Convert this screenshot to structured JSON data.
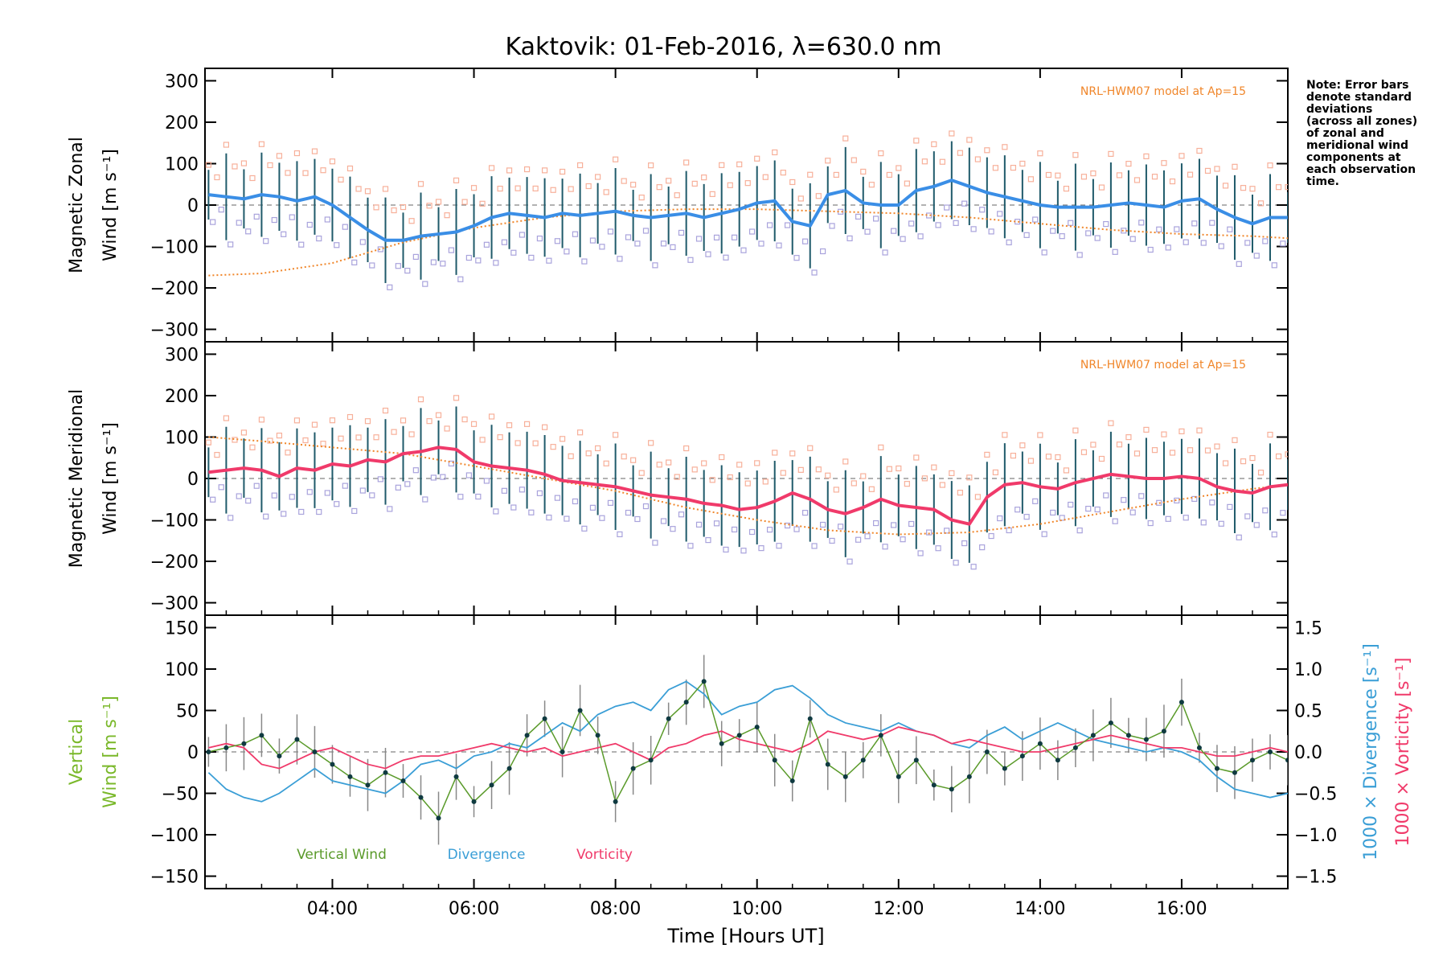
{
  "chart_data": [
    {
      "panel": "zonal",
      "type": "line",
      "title": "Kaktovik: 01-Feb-2016, λ=630.0 nm",
      "ylabel_line1": "Magnetic Zonal",
      "ylabel_line2": "Wind [m s⁻¹]",
      "ylim": [
        -330,
        330
      ],
      "yticks": [
        "300",
        "200",
        "100",
        "0",
        "−100",
        "−200",
        "−300"
      ],
      "ytick_values": [
        300,
        200,
        100,
        0,
        -100,
        -200,
        -300
      ],
      "model_label": "NRL-HWM07 model at Ap=15",
      "note": [
        "Note: Error bars",
        "denote standard",
        "deviations",
        "(across all zones)",
        "of zonal and",
        "meridional wind",
        "components at",
        "each observation",
        "time."
      ],
      "series": [
        {
          "name": "mean zonal wind",
          "color": "#3a8ee6",
          "x": [
            2.25,
            2.5,
            2.75,
            3.0,
            3.25,
            3.5,
            3.75,
            4.0,
            4.25,
            4.5,
            4.75,
            5.0,
            5.25,
            5.5,
            5.75,
            6.0,
            6.25,
            6.5,
            6.75,
            7.0,
            7.25,
            7.5,
            7.75,
            8.0,
            8.25,
            8.5,
            8.75,
            9.0,
            9.25,
            9.5,
            9.75,
            10.0,
            10.25,
            10.5,
            10.75,
            11.0,
            11.25,
            11.5,
            11.75,
            12.0,
            12.25,
            12.5,
            12.75,
            13.0,
            13.25,
            13.5,
            13.75,
            14.0,
            14.25,
            14.5,
            14.75,
            15.0,
            15.25,
            15.5,
            15.75,
            16.0,
            16.25,
            16.5,
            16.75,
            17.0,
            17.25,
            17.5
          ],
          "values": [
            25,
            20,
            15,
            25,
            20,
            10,
            20,
            0,
            -30,
            -60,
            -85,
            -85,
            -75,
            -70,
            -65,
            -50,
            -30,
            -20,
            -25,
            -30,
            -20,
            -25,
            -20,
            -15,
            -25,
            -30,
            -25,
            -20,
            -30,
            -20,
            -10,
            5,
            10,
            -40,
            -50,
            25,
            35,
            5,
            0,
            0,
            35,
            45,
            60,
            45,
            30,
            20,
            10,
            0,
            -5,
            -5,
            -5,
            0,
            5,
            0,
            -5,
            10,
            15,
            -10,
            -30,
            -45,
            -30,
            -30
          ]
        },
        {
          "name": "NRL-HWM07 zonal model",
          "color": "#f0862a",
          "x": [
            2.25,
            3.0,
            4.0,
            5.0,
            6.0,
            7.0,
            8.0,
            9.0,
            10.0,
            11.0,
            12.0,
            13.0,
            14.0,
            15.0,
            16.0,
            17.0,
            17.5
          ],
          "values": [
            -170,
            -165,
            -140,
            -90,
            -55,
            -30,
            -15,
            -10,
            -10,
            -15,
            -20,
            -30,
            -45,
            -60,
            -70,
            -75,
            -80
          ]
        }
      ]
    },
    {
      "panel": "meridional",
      "type": "line",
      "ylabel_line1": "Magnetic Meridional",
      "ylabel_line2": "Wind [m s⁻¹]",
      "ylim": [
        -330,
        330
      ],
      "yticks": [
        "300",
        "200",
        "100",
        "0",
        "−100",
        "−200",
        "−300"
      ],
      "ytick_values": [
        300,
        200,
        100,
        0,
        -100,
        -200,
        -300
      ],
      "model_label": "NRL-HWM07 model at Ap=15",
      "series": [
        {
          "name": "mean meridional wind",
          "color": "#f03a6a",
          "x": [
            2.25,
            2.5,
            2.75,
            3.0,
            3.25,
            3.5,
            3.75,
            4.0,
            4.25,
            4.5,
            4.75,
            5.0,
            5.25,
            5.5,
            5.75,
            6.0,
            6.25,
            6.5,
            6.75,
            7.0,
            7.25,
            7.5,
            7.75,
            8.0,
            8.25,
            8.5,
            8.75,
            9.0,
            9.25,
            9.5,
            9.75,
            10.0,
            10.25,
            10.5,
            10.75,
            11.0,
            11.25,
            11.5,
            11.75,
            12.0,
            12.25,
            12.5,
            12.75,
            13.0,
            13.25,
            13.5,
            13.75,
            14.0,
            14.25,
            14.5,
            14.75,
            15.0,
            15.25,
            15.5,
            15.75,
            16.0,
            16.25,
            16.5,
            16.75,
            17.0,
            17.25,
            17.5
          ],
          "values": [
            15,
            20,
            25,
            20,
            5,
            25,
            20,
            35,
            30,
            45,
            40,
            60,
            65,
            75,
            70,
            40,
            30,
            25,
            20,
            10,
            -5,
            -10,
            -15,
            -20,
            -30,
            -40,
            -45,
            -50,
            -60,
            -65,
            -75,
            -70,
            -55,
            -35,
            -50,
            -75,
            -85,
            -70,
            -50,
            -65,
            -70,
            -75,
            -100,
            -110,
            -45,
            -15,
            -10,
            -20,
            -25,
            -10,
            0,
            10,
            5,
            0,
            0,
            5,
            0,
            -20,
            -30,
            -35,
            -20,
            -15
          ]
        },
        {
          "name": "NRL-HWM07 meridional model",
          "color": "#f0862a",
          "x": [
            2.25,
            3.0,
            4.0,
            5.0,
            6.0,
            7.0,
            8.0,
            9.0,
            10.0,
            11.0,
            12.0,
            13.0,
            14.0,
            15.0,
            16.0,
            17.0,
            17.5
          ],
          "values": [
            100,
            90,
            75,
            60,
            30,
            0,
            -30,
            -70,
            -100,
            -125,
            -135,
            -130,
            -110,
            -80,
            -50,
            -25,
            -15
          ]
        }
      ]
    },
    {
      "panel": "vertical",
      "type": "line",
      "ylabel_line1": "Vertical",
      "ylabel_line2": "Wind [m s⁻¹]",
      "ylim": [
        -165,
        165
      ],
      "yticks": [
        "150",
        "100",
        "50",
        "0",
        "−50",
        "−100",
        "−150"
      ],
      "ytick_values": [
        150,
        100,
        50,
        0,
        -50,
        -100,
        -150
      ],
      "right_ylabel_div": "1000 × Divergence [s⁻¹]",
      "right_ylabel_vort": "1000 × Vorticity [s⁻¹]",
      "right_ylim": [
        -1.65,
        1.65
      ],
      "right_yticks": [
        "1.5",
        "1.0",
        "0.5",
        "0.0",
        "−0.5",
        "−1.0",
        "−1.5"
      ],
      "right_ytick_values": [
        1.5,
        1.0,
        0.5,
        0.0,
        -0.5,
        -1.0,
        -1.5
      ],
      "xlabel": "Time [Hours UT]",
      "xlim": [
        2.2,
        17.5
      ],
      "xticks": [
        "04:00",
        "06:00",
        "08:00",
        "10:00",
        "12:00",
        "14:00",
        "16:00"
      ],
      "xtick_values": [
        4,
        6,
        8,
        10,
        12,
        14,
        16
      ],
      "legend": [
        "Vertical Wind",
        "Divergence",
        "Vorticity"
      ],
      "series": [
        {
          "name": "Vertical Wind",
          "color": "#5a9a2a",
          "x": [
            2.25,
            2.5,
            2.75,
            3.0,
            3.25,
            3.5,
            3.75,
            4.0,
            4.25,
            4.5,
            4.75,
            5.0,
            5.25,
            5.5,
            5.75,
            6.0,
            6.25,
            6.5,
            6.75,
            7.0,
            7.25,
            7.5,
            7.75,
            8.0,
            8.25,
            8.5,
            8.75,
            9.0,
            9.25,
            9.5,
            9.75,
            10.0,
            10.25,
            10.5,
            10.75,
            11.0,
            11.25,
            11.5,
            11.75,
            12.0,
            12.25,
            12.5,
            12.75,
            13.0,
            13.25,
            13.5,
            13.75,
            14.0,
            14.25,
            14.5,
            14.75,
            15.0,
            15.25,
            15.5,
            15.75,
            16.0,
            16.25,
            16.5,
            16.75,
            17.0,
            17.25,
            17.5
          ],
          "values": [
            0,
            5,
            10,
            20,
            -5,
            15,
            0,
            -15,
            -30,
            -40,
            -25,
            -35,
            -55,
            -80,
            -30,
            -60,
            -40,
            -20,
            20,
            40,
            0,
            50,
            20,
            -60,
            -20,
            -10,
            40,
            60,
            85,
            10,
            20,
            30,
            -10,
            -35,
            40,
            -15,
            -30,
            -10,
            20,
            -30,
            -10,
            -40,
            -45,
            -30,
            0,
            -20,
            -5,
            10,
            -10,
            5,
            20,
            35,
            20,
            15,
            25,
            60,
            5,
            -20,
            -25,
            -10,
            0,
            -10
          ]
        },
        {
          "name": "Divergence",
          "color": "#3a9ed6",
          "x": [
            2.25,
            2.5,
            2.75,
            3.0,
            3.25,
            3.5,
            3.75,
            4.0,
            4.25,
            4.5,
            4.75,
            5.0,
            5.25,
            5.5,
            5.75,
            6.0,
            6.25,
            6.5,
            6.75,
            7.0,
            7.25,
            7.5,
            7.75,
            8.0,
            8.25,
            8.5,
            8.75,
            9.0,
            9.25,
            9.5,
            9.75,
            10.0,
            10.25,
            10.5,
            10.75,
            11.0,
            11.25,
            11.5,
            11.75,
            12.0,
            12.25,
            12.5,
            12.75,
            13.0,
            13.25,
            13.5,
            13.75,
            14.0,
            14.25,
            14.5,
            14.75,
            15.0,
            15.25,
            15.5,
            15.75,
            16.0,
            16.25,
            16.5,
            16.75,
            17.0,
            17.25,
            17.5
          ],
          "values": [
            -0.25,
            -0.45,
            -0.55,
            -0.6,
            -0.5,
            -0.35,
            -0.2,
            -0.35,
            -0.4,
            -0.45,
            -0.5,
            -0.35,
            -0.15,
            -0.1,
            -0.2,
            -0.05,
            0.0,
            0.1,
            0.05,
            0.2,
            0.35,
            0.25,
            0.45,
            0.55,
            0.6,
            0.5,
            0.75,
            0.85,
            0.7,
            0.45,
            0.55,
            0.6,
            0.75,
            0.8,
            0.65,
            0.45,
            0.35,
            0.3,
            0.25,
            0.35,
            0.25,
            0.2,
            0.1,
            0.05,
            0.2,
            0.3,
            0.15,
            0.25,
            0.35,
            0.25,
            0.15,
            0.1,
            0.05,
            0.0,
            0.05,
            0.0,
            -0.1,
            -0.3,
            -0.45,
            -0.5,
            -0.55,
            -0.5
          ]
        },
        {
          "name": "Vorticity",
          "color": "#f03a6a",
          "x": [
            2.25,
            2.5,
            2.75,
            3.0,
            3.25,
            3.5,
            3.75,
            4.0,
            4.25,
            4.5,
            4.75,
            5.0,
            5.25,
            5.5,
            5.75,
            6.0,
            6.25,
            6.5,
            6.75,
            7.0,
            7.25,
            7.5,
            7.75,
            8.0,
            8.25,
            8.5,
            8.75,
            9.0,
            9.25,
            9.5,
            9.75,
            10.0,
            10.25,
            10.5,
            10.75,
            11.0,
            11.25,
            11.5,
            11.75,
            12.0,
            12.25,
            12.5,
            12.75,
            13.0,
            13.25,
            13.5,
            13.75,
            14.0,
            14.25,
            14.5,
            14.75,
            15.0,
            15.25,
            15.5,
            15.75,
            16.0,
            16.25,
            16.5,
            16.75,
            17.0,
            17.25,
            17.5
          ],
          "values": [
            0.05,
            0.1,
            0.05,
            -0.15,
            -0.2,
            -0.1,
            0.0,
            0.05,
            -0.05,
            -0.15,
            -0.2,
            -0.1,
            -0.05,
            -0.05,
            0.0,
            0.05,
            0.1,
            0.05,
            0.0,
            0.05,
            -0.05,
            0.0,
            0.05,
            0.1,
            0.0,
            -0.1,
            0.05,
            0.1,
            0.2,
            0.25,
            0.15,
            0.1,
            0.05,
            0.0,
            0.1,
            0.25,
            0.2,
            0.15,
            0.2,
            0.3,
            0.25,
            0.2,
            0.1,
            0.15,
            0.1,
            0.05,
            0.0,
            0.0,
            0.05,
            0.1,
            0.15,
            0.2,
            0.15,
            0.1,
            0.05,
            0.05,
            0.0,
            -0.05,
            -0.05,
            0.0,
            0.05,
            0.0
          ]
        }
      ]
    }
  ]
}
